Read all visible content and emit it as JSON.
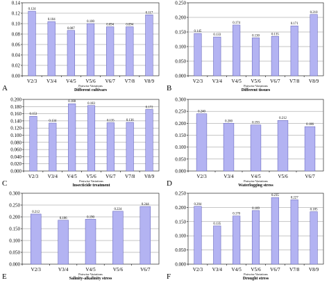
{
  "chart_data": [
    {
      "type": "bar",
      "panel": "A",
      "categories": [
        "V2/3",
        "V3/4",
        "V4/5",
        "V5/6",
        "V6/7",
        "V7/8",
        "V8/9"
      ],
      "values": [
        0.124,
        0.104,
        0.087,
        0.1,
        0.094,
        0.094,
        0.117
      ],
      "value_labels": [
        "0.124",
        "0.104",
        "0.087",
        "0.100",
        "0.094",
        "0.094",
        "0.117"
      ],
      "yticks": [
        "0.00",
        "0.02",
        "0.04",
        "0.06",
        "0.08",
        "0.10",
        "0.12",
        "0.14"
      ],
      "ylim": [
        0,
        0.14
      ],
      "xtitle_pre": "Pairwise Variations",
      "xtitle": "Different cultivars",
      "grid": true,
      "bar_color": "#b3b3f2"
    },
    {
      "type": "bar",
      "panel": "B",
      "categories": [
        "V2/3",
        "V3/4",
        "V4/5",
        "V5/6",
        "V6/7",
        "V7/8",
        "V8/9"
      ],
      "values": [
        0.145,
        0.133,
        0.174,
        0.13,
        0.135,
        0.171,
        0.21
      ],
      "value_labels": [
        "0.145",
        "0.133",
        "0.174",
        "0.130",
        "0.135",
        "0.171",
        "0.210"
      ],
      "yticks": [
        "0.000",
        "0.050",
        "0.100",
        "0.150",
        "0.200",
        "0.250"
      ],
      "ylim": [
        0,
        0.25
      ],
      "xtitle_pre": "Pairwise Variations",
      "xtitle": "Different tissues",
      "grid": true,
      "bar_color": "#b3b3f2"
    },
    {
      "type": "bar",
      "panel": "C",
      "categories": [
        "V2/3",
        "V3/4",
        "V4/5",
        "V5/6",
        "V6/7",
        "V7/8",
        "V8/9"
      ],
      "values": [
        0.153,
        0.134,
        0.188,
        0.183,
        0.135,
        0.136,
        0.172
      ],
      "value_labels": [
        "0.153",
        "0.134",
        "0.188",
        "0.183",
        "0.135",
        "0.136",
        "0.172"
      ],
      "yticks": [
        "0.000",
        "0.020",
        "0.040",
        "0.060",
        "0.080",
        "0.100",
        "0.120",
        "0.140",
        "0.160",
        "0.180",
        "0.200"
      ],
      "ylim": [
        0,
        0.2
      ],
      "xtitle_pre": "Pairwise Variations",
      "xtitle": "Insecticide treatment",
      "grid": true,
      "bar_color": "#b3b3f2"
    },
    {
      "type": "bar",
      "panel": "D",
      "categories": [
        "V2/3",
        "V3/4",
        "V4/5",
        "V5/6",
        "V6/7"
      ],
      "values": [
        0.24,
        0.2,
        0.193,
        0.212,
        0.186
      ],
      "value_labels": [
        "0.240",
        "0.200",
        "0.193",
        "0.212",
        "0.186"
      ],
      "yticks": [
        "0.000",
        "0.050",
        "0.100",
        "0.150",
        "0.200",
        "0.250",
        "0.300"
      ],
      "ylim": [
        0,
        0.3
      ],
      "xtitle_pre": "Pairwise Variations",
      "xtitle": "Waterlogging stress",
      "grid": true,
      "bar_color": "#b3b3f2"
    },
    {
      "type": "bar",
      "panel": "E",
      "categories": [
        "V2/3",
        "V3/4",
        "V4/5",
        "V5/6",
        "V6/7"
      ],
      "values": [
        0.212,
        0.186,
        0.19,
        0.224,
        0.244
      ],
      "value_labels": [
        "0.212",
        "0.186",
        "0.190",
        "0.224",
        "0.244"
      ],
      "yticks": [
        "0.000",
        "0.050",
        "0.100",
        "0.150",
        "0.200",
        "0.250",
        "0.300"
      ],
      "ylim": [
        0,
        0.3
      ],
      "xtitle_pre": "Pairwise Variations",
      "xtitle": "Salinity-alkalinity stress",
      "grid": true,
      "bar_color": "#b3b3f2"
    },
    {
      "type": "bar",
      "panel": "F",
      "categories": [
        "V2/3",
        "V3/4",
        "V4/5",
        "V5/6",
        "V6/7",
        "V7/8",
        "V8/9"
      ],
      "values": [
        0.204,
        0.135,
        0.17,
        0.189,
        0.235,
        0.227,
        0.185
      ],
      "value_labels": [
        "0.204",
        "0.135",
        "0.170",
        "0.189",
        "0.235",
        "0.227",
        "0.185"
      ],
      "yticks": [
        "0.000",
        "0.050",
        "0.100",
        "0.150",
        "0.200",
        "0.250"
      ],
      "ylim": [
        0,
        0.25
      ],
      "xtitle_pre": "Pairwise Variations",
      "xtitle": "Drought stress",
      "grid": true,
      "bar_color": "#b3b3f2"
    }
  ]
}
